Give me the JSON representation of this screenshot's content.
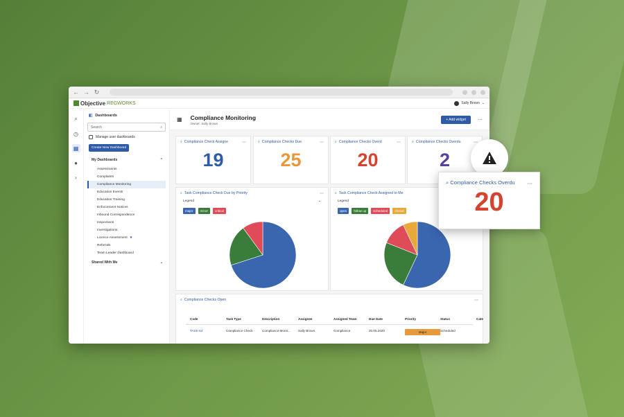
{
  "app": {
    "brand_main": "Objective",
    "brand_sub": "REGWORKS",
    "user_name": "Sally Brown"
  },
  "sidebar": {
    "title": "Dashboards",
    "search_placeholder": "Search",
    "manage_label": "Manage user dashboards",
    "create_label": "Create New Dashboard",
    "my_dashboards_label": "My Dashboards",
    "shared_label": "Shared With Me",
    "items": [
      "Assessments",
      "Complaints",
      "Compliance Monitoring",
      "Education Events",
      "Education Training",
      "Enforcement Notices",
      "Inbound Correspondence",
      "Inspections",
      "Investigations",
      "Licence Assessment",
      "Referrals",
      "Team Leader Dashboard"
    ]
  },
  "header": {
    "title": "Compliance Monitoring",
    "owner": "Owner: Sally Brown",
    "add_widget": "Add widget"
  },
  "widgets": [
    {
      "title": "Compliance Check Assigne",
      "value": "19",
      "color": "#2f5aa7"
    },
    {
      "title": "Compliance Checks Due",
      "value": "25",
      "color": "#e8983a"
    },
    {
      "title": "Compliance Checks Overd",
      "value": "20",
      "color": "#d5432f"
    },
    {
      "title": "Compliance Checks Overdu",
      "value": "2",
      "color": "#5a3fa0"
    }
  ],
  "charts": {
    "left": {
      "title": "Task Compliance Check Due by Priority",
      "legend_label": "Legend",
      "tags": [
        {
          "label": "major",
          "color": "#3a66b0"
        },
        {
          "label": "minor",
          "color": "#3a7d3a"
        },
        {
          "label": "critical",
          "color": "#e04b5a"
        }
      ]
    },
    "right": {
      "title": "Task Compliance Check Assigned to Me",
      "legend_label": "Legend",
      "tags": [
        {
          "label": "open",
          "color": "#3a66b0"
        },
        {
          "label": "follow up",
          "color": "#3a7d3a"
        },
        {
          "label": "scheduled",
          "color": "#e04b5a"
        },
        {
          "label": "closed",
          "color": "#e8a93a"
        }
      ]
    }
  },
  "chart_data": [
    {
      "type": "pie",
      "categories": [
        "major",
        "minor",
        "critical"
      ],
      "values": [
        70,
        20,
        10
      ]
    },
    {
      "type": "pie",
      "categories": [
        "open",
        "follow up",
        "scheduled",
        "closed"
      ],
      "values": [
        57,
        24,
        12,
        7
      ]
    }
  ],
  "table": {
    "title": "Compliance Checks Open",
    "columns": [
      "Code",
      "Task Type",
      "Description",
      "Assignee",
      "Assigned Team",
      "Due Date",
      "Priority",
      "Status",
      "Cate"
    ],
    "rows": [
      [
        "TASK-64",
        "Compliance Check",
        "Compliance Monit...",
        "Sally Brown",
        "Compliance",
        "20.05.2020",
        "Major",
        "Scheduled",
        ""
      ]
    ]
  },
  "popup": {
    "title": "Compliance Checks Overdu",
    "value": "20"
  }
}
